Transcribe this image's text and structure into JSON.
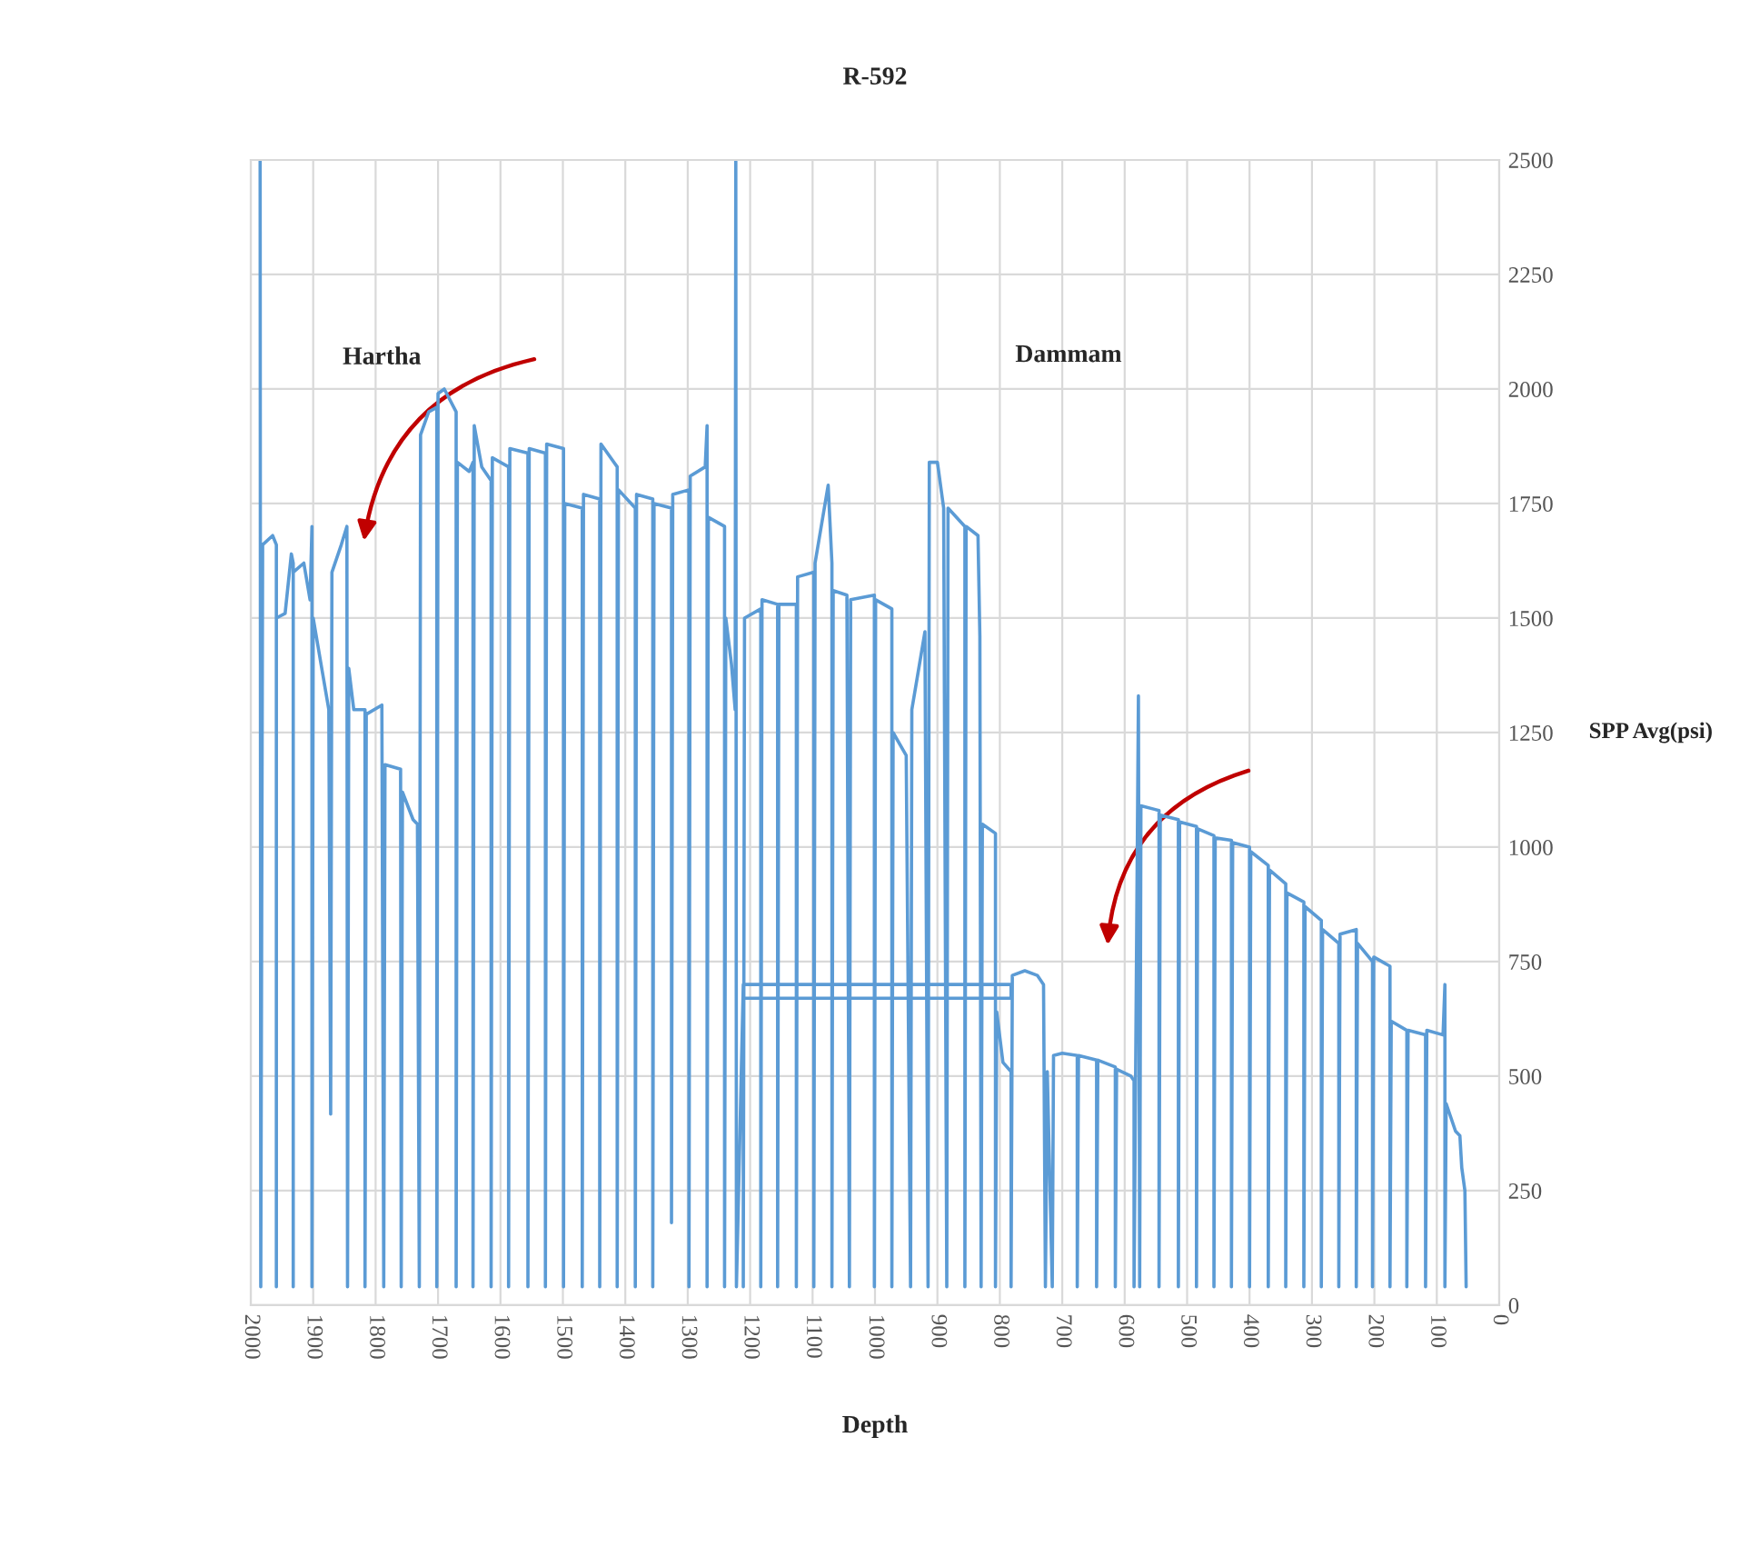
{
  "chart_data": {
    "type": "line",
    "title": "R-592",
    "xlabel": "Depth",
    "ylabel": "SPP Avg(psi)",
    "annotations": [
      "Hartha",
      "Dammam"
    ],
    "xlim": [
      2000,
      0
    ],
    "xticks": [
      2000,
      1900,
      1800,
      1700,
      1600,
      1500,
      1400,
      1300,
      1200,
      1100,
      1000,
      900,
      800,
      700,
      600,
      500,
      400,
      300,
      200,
      100,
      0
    ],
    "ylim": [
      0,
      2500
    ],
    "yticks": [
      0,
      250,
      500,
      750,
      1000,
      1250,
      1500,
      1750,
      2000,
      2250,
      2500
    ],
    "grid": true,
    "marker": "none",
    "line_style": "solid",
    "series": [
      {
        "color": "#5b9bd5",
        "x": [
          1985,
          1984,
          1981,
          1965,
          1959,
          1959,
          1959,
          1945,
          1935,
          1932,
          1932,
          1932,
          1915,
          1905,
          1902,
          1902,
          1900,
          1885,
          1875,
          1872,
          1870,
          1855,
          1846,
          1845,
          1843,
          1835,
          1817,
          1817,
          1815,
          1790,
          1787,
          1785,
          1760,
          1759,
          1757,
          1740,
          1733,
          1730,
          1728,
          1715,
          1702,
          1702,
          1700,
          1690,
          1671,
          1671,
          1669,
          1650,
          1644,
          1644,
          1642,
          1630,
          1615,
          1615,
          1613,
          1587,
          1587,
          1585,
          1556,
          1556,
          1554,
          1528,
          1528,
          1526,
          1499,
          1499,
          1497,
          1469,
          1469,
          1467,
          1441,
          1441,
          1439,
          1413,
          1413,
          1411,
          1384,
          1384,
          1382,
          1356,
          1356,
          1354,
          1326,
          1326,
          1324,
          1298,
          1298,
          1296,
          1272,
          1269,
          1269,
          1267,
          1241,
          1241,
          1239,
          1230,
          1224,
          1223,
          1222,
          1211,
          782,
          782,
          1211,
          1211,
          1209,
          1183,
          1183,
          1181,
          1156,
          1156,
          1154,
          1126,
          1126,
          1124,
          1098,
          1098,
          1096,
          1075,
          1069,
          1069,
          1067,
          1045,
          1041,
          1039,
          1001,
          1001,
          999,
          973,
          973,
          971,
          950,
          943,
          941,
          920,
          915,
          913,
          900,
          890,
          885,
          883,
          856,
          856,
          854,
          835,
          832,
          830,
          828,
          807,
          807,
          805,
          795,
          782,
          782,
          780,
          760,
          740,
          730,
          727,
          724,
          716,
          714,
          700,
          676,
          676,
          674,
          645,
          645,
          643,
          615,
          615,
          613,
          590,
          585,
          585,
          578,
          576,
          574,
          545,
          545,
          543,
          514,
          514,
          512,
          485,
          485,
          483,
          457,
          457,
          455,
          429,
          429,
          427,
          400,
          400,
          398,
          370,
          370,
          368,
          342,
          342,
          340,
          313,
          313,
          311,
          285,
          285,
          283,
          257,
          257,
          255,
          229,
          229,
          227,
          203,
          203,
          201,
          175,
          175,
          173,
          148,
          148,
          146,
          118,
          118,
          116,
          90,
          87,
          87,
          85,
          70,
          63,
          60,
          55,
          53
        ],
        "values": [
          2500,
          40,
          1660,
          1680,
          1660,
          40,
          1500,
          1510,
          1640,
          1620,
          40,
          1600,
          1620,
          1540,
          1700,
          40,
          1500,
          1380,
          1300,
          417,
          1600,
          1660,
          1700,
          40,
          1390,
          1300,
          1300,
          40,
          1290,
          1310,
          40,
          1180,
          1170,
          40,
          1120,
          1060,
          1050,
          40,
          1900,
          1950,
          1960,
          40,
          1990,
          2000,
          1950,
          40,
          1840,
          1820,
          1840,
          40,
          1920,
          1830,
          1800,
          40,
          1850,
          1830,
          40,
          1870,
          1860,
          40,
          1870,
          1860,
          40,
          1880,
          1870,
          40,
          1750,
          1740,
          40,
          1770,
          1760,
          40,
          1880,
          1830,
          40,
          1780,
          1740,
          40,
          1770,
          1760,
          40,
          1750,
          1740,
          180,
          1770,
          1780,
          40,
          1810,
          1830,
          1920,
          40,
          1720,
          1700,
          40,
          1500,
          1400,
          1300,
          2500,
          40,
          700,
          700,
          670,
          670,
          40,
          1500,
          1520,
          40,
          1540,
          1530,
          40,
          1530,
          1530,
          40,
          1590,
          1600,
          40,
          1620,
          1790,
          1620,
          40,
          1560,
          1550,
          40,
          1540,
          1550,
          40,
          1540,
          1520,
          40,
          1250,
          1200,
          40,
          1300,
          1470,
          40,
          1840,
          1840,
          1740,
          40,
          1740,
          1700,
          40,
          1700,
          1680,
          1460,
          40,
          1050,
          1030,
          40,
          640,
          530,
          510,
          40,
          720,
          730,
          720,
          700,
          40,
          510,
          40,
          545,
          550,
          545,
          40,
          545,
          535,
          40,
          535,
          520,
          40,
          515,
          500,
          490,
          40,
          1330,
          40,
          1090,
          1080,
          40,
          1070,
          1060,
          40,
          1055,
          1045,
          40,
          1040,
          1025,
          40,
          1020,
          1015,
          40,
          1010,
          1000,
          40,
          990,
          960,
          40,
          950,
          920,
          40,
          900,
          880,
          40,
          870,
          840,
          40,
          820,
          790,
          40,
          810,
          820,
          40,
          790,
          750,
          40,
          760,
          740,
          40,
          620,
          600,
          40,
          600,
          590,
          40,
          600,
          590,
          700,
          40,
          440,
          380,
          370,
          300,
          250,
          40
        ]
      }
    ]
  }
}
